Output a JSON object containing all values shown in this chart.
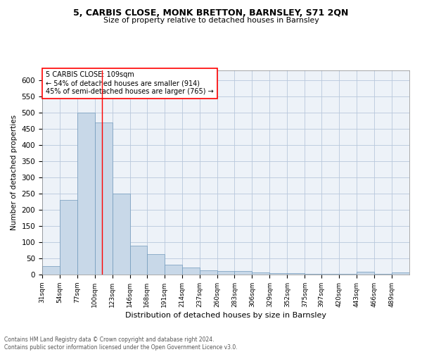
{
  "title1": "5, CARBIS CLOSE, MONK BRETTON, BARNSLEY, S71 2QN",
  "title2": "Size of property relative to detached houses in Barnsley",
  "xlabel": "Distribution of detached houses by size in Barnsley",
  "ylabel": "Number of detached properties",
  "footnote1": "Contains HM Land Registry data © Crown copyright and database right 2024.",
  "footnote2": "Contains public sector information licensed under the Open Government Licence v3.0.",
  "annotation_line1": "5 CARBIS CLOSE: 109sqm",
  "annotation_line2": "← 54% of detached houses are smaller (914)",
  "annotation_line3": "45% of semi-detached houses are larger (765) →",
  "bar_color": "#c8d8e8",
  "bar_edge_color": "#7099bb",
  "grid_color": "#b8c8dc",
  "property_line_x": 109,
  "categories": [
    "31sqm",
    "54sqm",
    "77sqm",
    "100sqm",
    "123sqm",
    "146sqm",
    "168sqm",
    "191sqm",
    "214sqm",
    "237sqm",
    "260sqm",
    "283sqm",
    "306sqm",
    "329sqm",
    "352sqm",
    "375sqm",
    "397sqm",
    "420sqm",
    "443sqm",
    "466sqm",
    "489sqm"
  ],
  "bin_edges": [
    31,
    54,
    77,
    100,
    123,
    146,
    168,
    191,
    214,
    237,
    260,
    283,
    306,
    329,
    352,
    375,
    397,
    420,
    443,
    466,
    489,
    512
  ],
  "values": [
    25,
    230,
    500,
    470,
    250,
    90,
    63,
    30,
    22,
    13,
    11,
    10,
    7,
    5,
    4,
    3,
    3,
    3,
    8,
    2,
    6
  ],
  "ylim": [
    0,
    630
  ],
  "yticks": [
    0,
    50,
    100,
    150,
    200,
    250,
    300,
    350,
    400,
    450,
    500,
    550,
    600
  ]
}
